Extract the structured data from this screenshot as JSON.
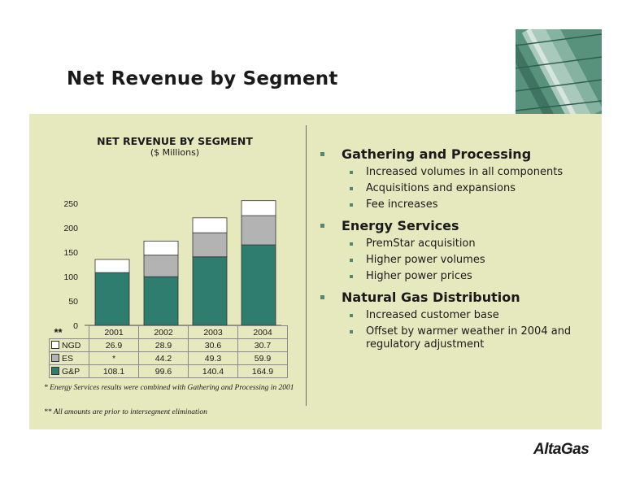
{
  "slide": {
    "title": "Net Revenue by Segment",
    "logo_text": "AltaGas",
    "panel_color": "#e6e8bd",
    "accent_color": "#4f8a76"
  },
  "chart_data": {
    "type": "bar",
    "stacked": true,
    "title": "NET REVENUE BY SEGMENT",
    "subtitle": "($ Millions)",
    "categories": [
      "2001",
      "2002",
      "2003",
      "2004"
    ],
    "series": [
      {
        "name": "G&P",
        "color": "#2e7d6f",
        "values": [
          108.1,
          99.6,
          140.4,
          164.9
        ],
        "labels": [
          "108.1",
          "99.6",
          "140.4",
          "164.9"
        ]
      },
      {
        "name": "ES",
        "color": "#b3b3b3",
        "values": [
          0,
          44.2,
          49.3,
          59.9
        ],
        "labels": [
          "*",
          "44.2",
          "49.3",
          "59.9"
        ]
      },
      {
        "name": "NGD",
        "color": "#ffffff",
        "values": [
          26.9,
          28.9,
          30.6,
          30.7
        ],
        "labels": [
          "26.9",
          "28.9",
          "30.6",
          "30.7"
        ]
      }
    ],
    "ylim": [
      0,
      250
    ],
    "yticks": [
      "0",
      "50",
      "100",
      "150",
      "200",
      "250"
    ],
    "grid": false,
    "table_marker": "**",
    "legend": "data-table"
  },
  "footnotes": {
    "note1": "* Energy Services results were combined with Gathering and Processing in 2001",
    "note2": "** All amounts are prior to intersegment elimination"
  },
  "bullets": [
    {
      "heading": "Gathering and Processing",
      "items": [
        "Increased volumes in all components",
        "Acquisitions and expansions",
        "Fee increases"
      ]
    },
    {
      "heading": "Energy Services",
      "items": [
        "PremStar acquisition",
        "Higher power volumes",
        "Higher power prices"
      ]
    },
    {
      "heading": "Natural Gas Distribution",
      "items": [
        "Increased customer base",
        "Offset by warmer weather in 2004 and regulatory adjustment"
      ]
    }
  ]
}
